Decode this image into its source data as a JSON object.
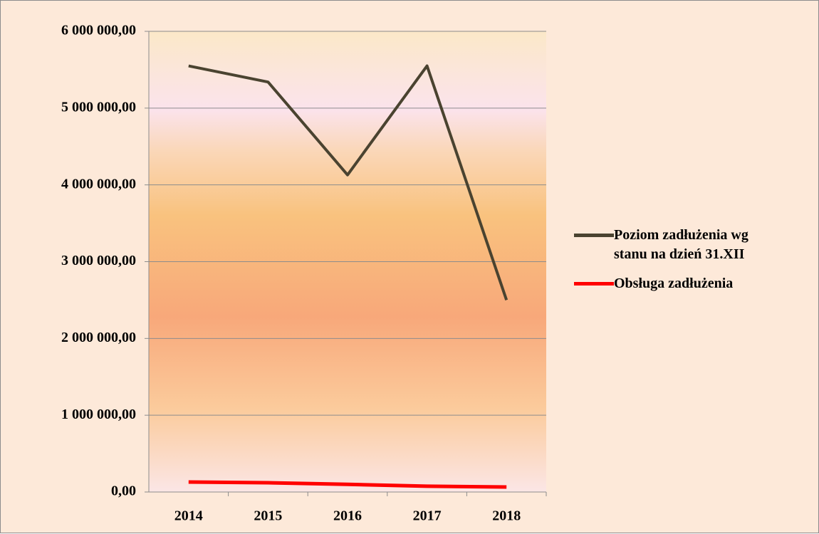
{
  "chart_data": {
    "type": "line",
    "categories": [
      "2014",
      "2015",
      "2016",
      "2017",
      "2018"
    ],
    "series": [
      {
        "name": "Poziom zadłużenia wg stanu na dzień 31.XII",
        "color": "#4a4330",
        "values": [
          5550000,
          5340000,
          4130000,
          5550000,
          2500000
        ]
      },
      {
        "name": "Obsługa zadłużenia",
        "color": "#ff0000",
        "values": [
          130000,
          120000,
          100000,
          75000,
          65000
        ]
      }
    ],
    "ylim": [
      0,
      6000000
    ],
    "yticks": [
      {
        "value": 0,
        "label": "0,00"
      },
      {
        "value": 1000000,
        "label": "1 000 000,00"
      },
      {
        "value": 2000000,
        "label": "2 000 000,00"
      },
      {
        "value": 3000000,
        "label": "3 000 000,00"
      },
      {
        "value": 4000000,
        "label": "4 000 000,00"
      },
      {
        "value": 5000000,
        "label": "5 000 000,00"
      },
      {
        "value": 6000000,
        "label": "6 000 000,00"
      }
    ],
    "grid": true,
    "legend": "right"
  }
}
